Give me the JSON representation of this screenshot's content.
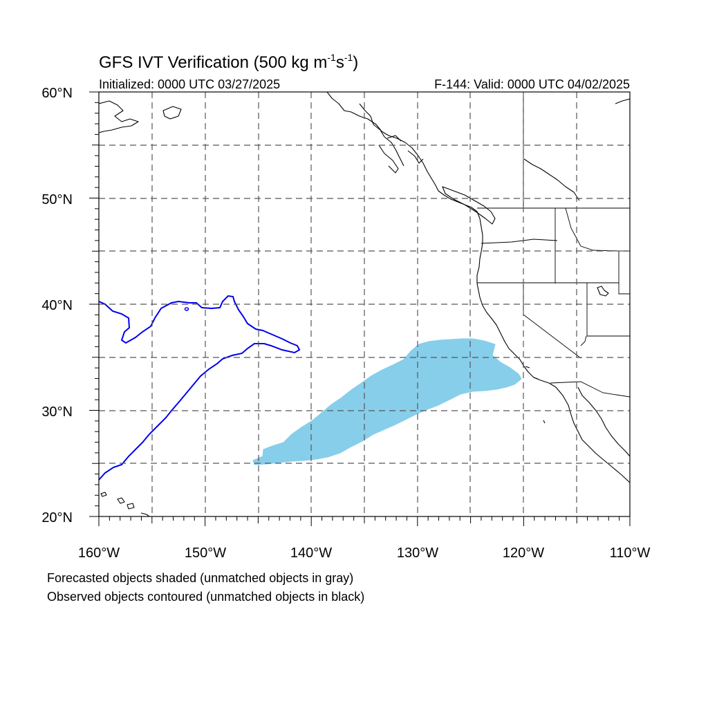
{
  "title": {
    "main": "GFS IVT Verification (500 kg m",
    "exp1": "-1",
    "mid": "s",
    "exp2": "-1",
    "end": ")"
  },
  "initialized": "Initialized: 0000 UTC 03/27/2025",
  "valid": "F-144: Valid: 0000 UTC 04/02/2025",
  "lat_labels": [
    "60°N",
    "50°N",
    "40°N",
    "30°N",
    "20°N"
  ],
  "lon_labels": [
    "160°W",
    "150°W",
    "140°W",
    "130°W",
    "120°W",
    "110°W"
  ],
  "footnote": {
    "line1": "Forecasted objects shaded (unmatched objects in gray)",
    "line2": "Observed objects contoured (unmatched objects in black)"
  },
  "colors": {
    "forecast_fill": "#87ceeb",
    "observed_contour": "#0000ee",
    "coast": "#000000",
    "grid": "#555555"
  }
}
